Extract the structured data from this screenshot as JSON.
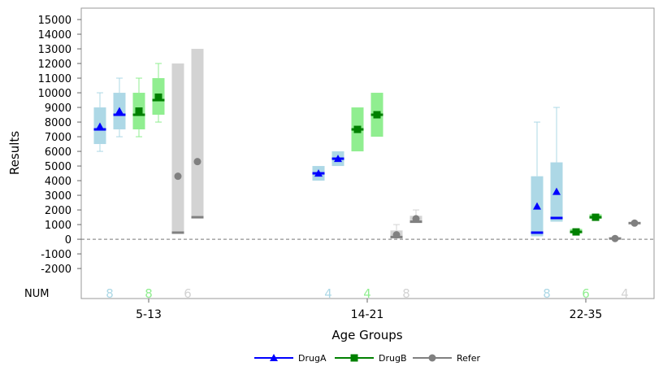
{
  "chart_data": {
    "type": "box",
    "xlabel": "Age Groups",
    "ylabel": "Results",
    "ylim": [
      -4050,
      15780
    ],
    "yticks": [
      -2000,
      -1000,
      0,
      1000,
      2000,
      3000,
      4000,
      5000,
      6000,
      7000,
      8000,
      9000,
      10000,
      11000,
      12000,
      13000,
      14000,
      15000
    ],
    "reference_line": 0,
    "categories": [
      "5-13",
      "14-21",
      "22-35"
    ],
    "count_label": "NUM",
    "legend_position": "bottom",
    "series": [
      {
        "name": "DrugA",
        "fill": "#add8e6",
        "color": "#0000ff",
        "marker": "triangle",
        "counts": [
          "8",
          "4",
          "8"
        ],
        "boxes": [
          [
            {
              "min": 6000,
              "q1": 6500,
              "median": 7500,
              "q3": 9000,
              "max": 10000,
              "mean": 7700
            },
            {
              "min": 7000,
              "q1": 7500,
              "median": 8500,
              "q3": 10000,
              "max": 11000,
              "mean": 8750
            }
          ],
          [
            {
              "min": 4000,
              "q1": 4000,
              "median": 4500,
              "q3": 5000,
              "max": 5000,
              "mean": 4500
            },
            {
              "min": 5000,
              "q1": 5000,
              "median": 5500,
              "q3": 6000,
              "max": 6000,
              "mean": 5500
            }
          ],
          [
            {
              "min": 200,
              "q1": 200,
              "median": 450,
              "q3": 4300,
              "max": 8000,
              "mean": 2250
            },
            {
              "min": 1200,
              "q1": 1200,
              "median": 1450,
              "q3": 5250,
              "max": 9000,
              "mean": 3250
            }
          ]
        ]
      },
      {
        "name": "DrugB",
        "fill": "#90ee90",
        "color": "#008000",
        "marker": "square",
        "counts": [
          "8",
          "4",
          "6"
        ],
        "boxes": [
          [
            {
              "min": 7000,
              "q1": 7500,
              "median": 8500,
              "q3": 10000,
              "max": 11000,
              "mean": 8750
            },
            {
              "min": 8000,
              "q1": 8500,
              "median": 9500,
              "q3": 11000,
              "max": 12000,
              "mean": 9700
            }
          ],
          [
            {
              "min": 6000,
              "q1": 6000,
              "median": 7500,
              "q3": 9000,
              "max": 9000,
              "mean": 7500
            },
            {
              "min": 7000,
              "q1": 7000,
              "median": 8500,
              "q3": 10000,
              "max": 10000,
              "mean": 8500
            }
          ],
          [
            {
              "min": 400,
              "q1": 400,
              "median": 500,
              "q3": 700,
              "max": 700,
              "mean": 500
            },
            {
              "min": 1400,
              "q1": 1400,
              "median": 1500,
              "q3": 1700,
              "max": 1700,
              "mean": 1500
            }
          ]
        ]
      },
      {
        "name": "Refer",
        "fill": "#d3d3d3",
        "color": "#808080",
        "marker": "circle",
        "counts": [
          "6",
          "8",
          "4"
        ],
        "boxes": [
          [
            {
              "min": 450,
              "q1": 450,
              "median": 450,
              "q3": 12000,
              "max": 12000,
              "mean": 4300
            },
            {
              "min": 1500,
              "q1": 1500,
              "median": 1500,
              "q3": 13000,
              "max": 13000,
              "mean": 5300
            }
          ],
          [
            {
              "min": 50,
              "q1": 50,
              "median": 150,
              "q3": 600,
              "max": 1000,
              "mean": 300
            },
            {
              "min": 1100,
              "q1": 1100,
              "median": 1200,
              "q3": 1600,
              "max": 2000,
              "mean": 1400
            }
          ],
          [
            {
              "min": 0,
              "q1": 0,
              "median": 50,
              "q3": 100,
              "max": 100,
              "mean": 50
            },
            {
              "min": 1050,
              "q1": 1050,
              "median": 1100,
              "q3": 1150,
              "max": 1150,
              "mean": 1100
            }
          ]
        ]
      }
    ]
  }
}
